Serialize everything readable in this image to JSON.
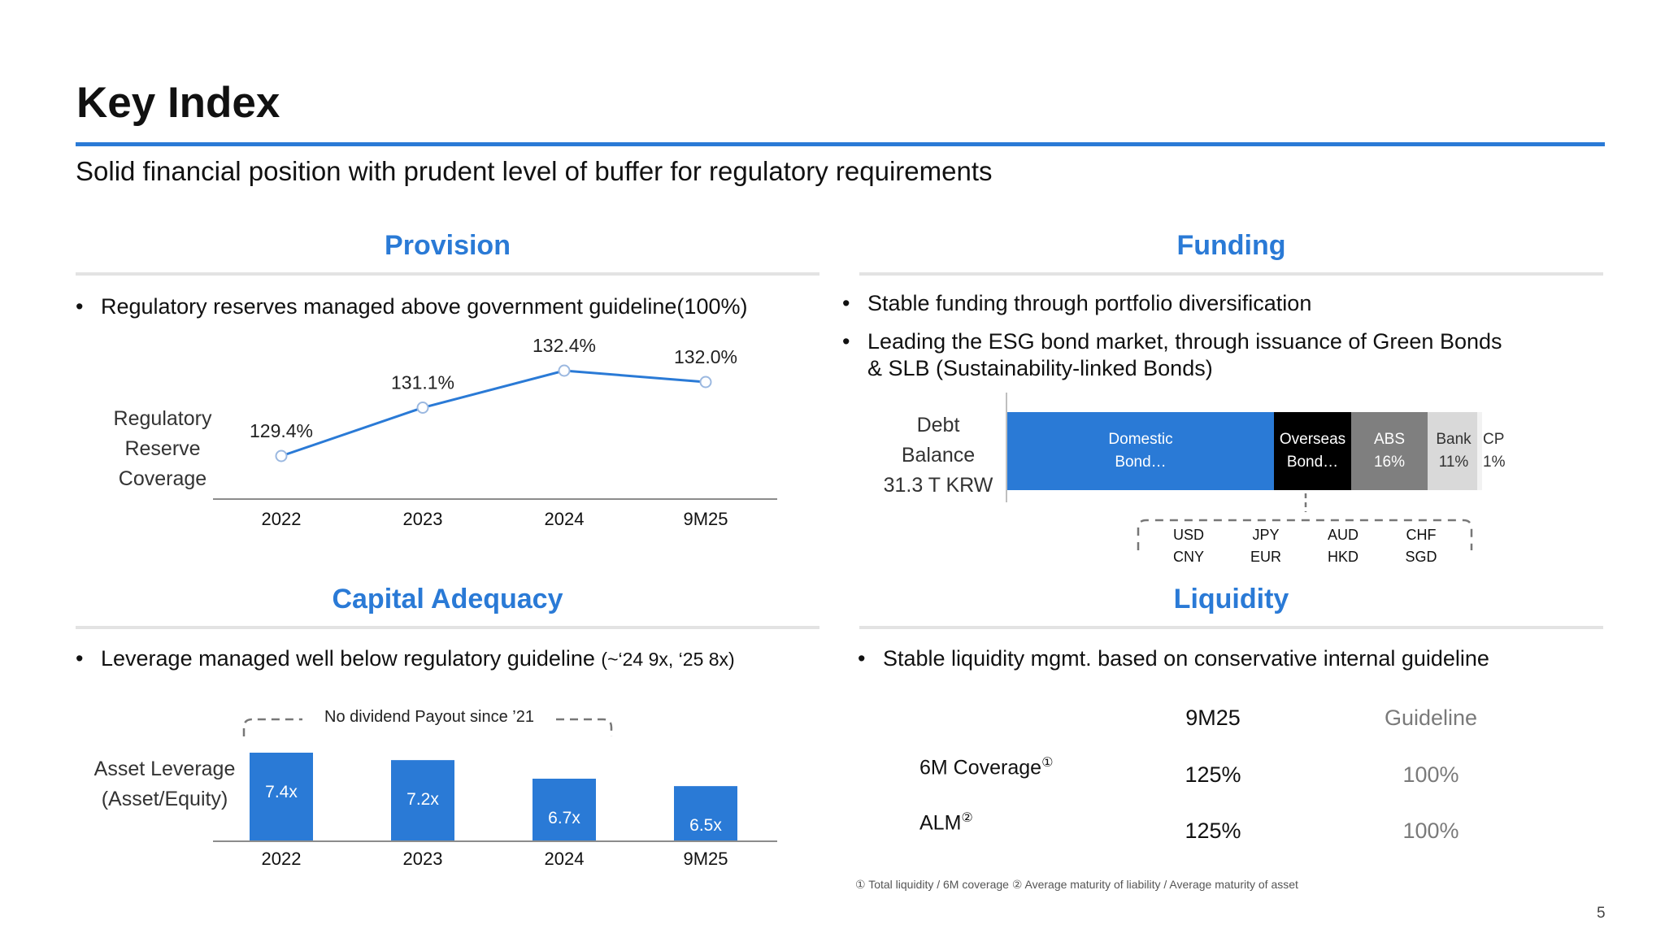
{
  "header": {
    "title": "Key Index",
    "subtitle": "Solid financial position with prudent level of buffer for regulatory requirements"
  },
  "provision": {
    "title": "Provision",
    "bullet": "Regulatory reserves managed above government guideline(100%)",
    "side_label": [
      "Regulatory",
      "Reserve",
      "Coverage"
    ]
  },
  "funding": {
    "title": "Funding",
    "bullets": [
      "Stable funding through portfolio diversification",
      "Leading the ESG bond market, through issuance of Green Bonds",
      "& SLB (Sustainability-linked Bonds)"
    ],
    "debt_label": [
      "Debt",
      "Balance",
      "31.3 T KRW"
    ],
    "segments": [
      {
        "line1": "Domestic",
        "line2": "Bond…",
        "color": "#2a7ad6",
        "text_color": "#ffffff"
      },
      {
        "line1": "Overseas",
        "line2": "Bond…",
        "color": "#000000",
        "text_color": "#ffffff"
      },
      {
        "line1": "ABS",
        "line2": "16%",
        "color": "#7f7f7f",
        "text_color": "#ffffff"
      },
      {
        "line1": "Bank",
        "line2": "11%",
        "color": "#d9d9d9",
        "text_color": "#333333"
      },
      {
        "line1": "CP",
        "line2": "1%",
        "color": "#f2f2f2",
        "text_color": "#333333"
      }
    ],
    "currencies": [
      {
        "top": "USD",
        "bottom": "CNY"
      },
      {
        "top": "JPY",
        "bottom": "EUR"
      },
      {
        "top": "AUD",
        "bottom": "HKD"
      },
      {
        "top": "CHF",
        "bottom": "SGD"
      }
    ]
  },
  "capital": {
    "title": "Capital Adequacy",
    "bullet_main": "Leverage managed well below regulatory guideline",
    "bullet_suffix": "(~‘24 9x, ‘25 8x)",
    "side_label": [
      "Asset Leverage",
      "(Asset/Equity)"
    ],
    "annotation": "No dividend Payout since ’21"
  },
  "liquidity": {
    "title": "Liquidity",
    "bullet": "Stable liquidity mgmt. based on conservative internal guideline",
    "col_period": "9M25",
    "col_guideline": "Guideline",
    "rows": [
      {
        "label": "6M Coverage",
        "mark": "①",
        "value": "125%",
        "guideline": "100%"
      },
      {
        "label": "ALM",
        "mark": "②",
        "value": "125%",
        "guideline": "100%"
      }
    ]
  },
  "footnote": "① Total liquidity / 6M coverage ② Average maturity of liability / Average maturity of asset",
  "page_number": "5",
  "chart_data": [
    {
      "type": "line",
      "categories": [
        "2022",
        "2023",
        "2024",
        "9M25"
      ],
      "values": [
        129.4,
        131.1,
        132.4,
        132.0
      ],
      "value_labels": [
        "129.4%",
        "131.1%",
        "132.4%",
        "132.0%"
      ],
      "color": "#2a7ad6",
      "ylabel": "Regulatory Reserve Coverage"
    },
    {
      "type": "bar",
      "categories": [
        "2022",
        "2023",
        "2024",
        "9M25"
      ],
      "values": [
        7.4,
        7.2,
        6.7,
        6.5
      ],
      "value_labels": [
        "7.4x",
        "7.2x",
        "6.7x",
        "6.5x"
      ],
      "color": "#2a7ad6",
      "ylabel": "Asset Leverage (Asset/Equity)"
    }
  ]
}
